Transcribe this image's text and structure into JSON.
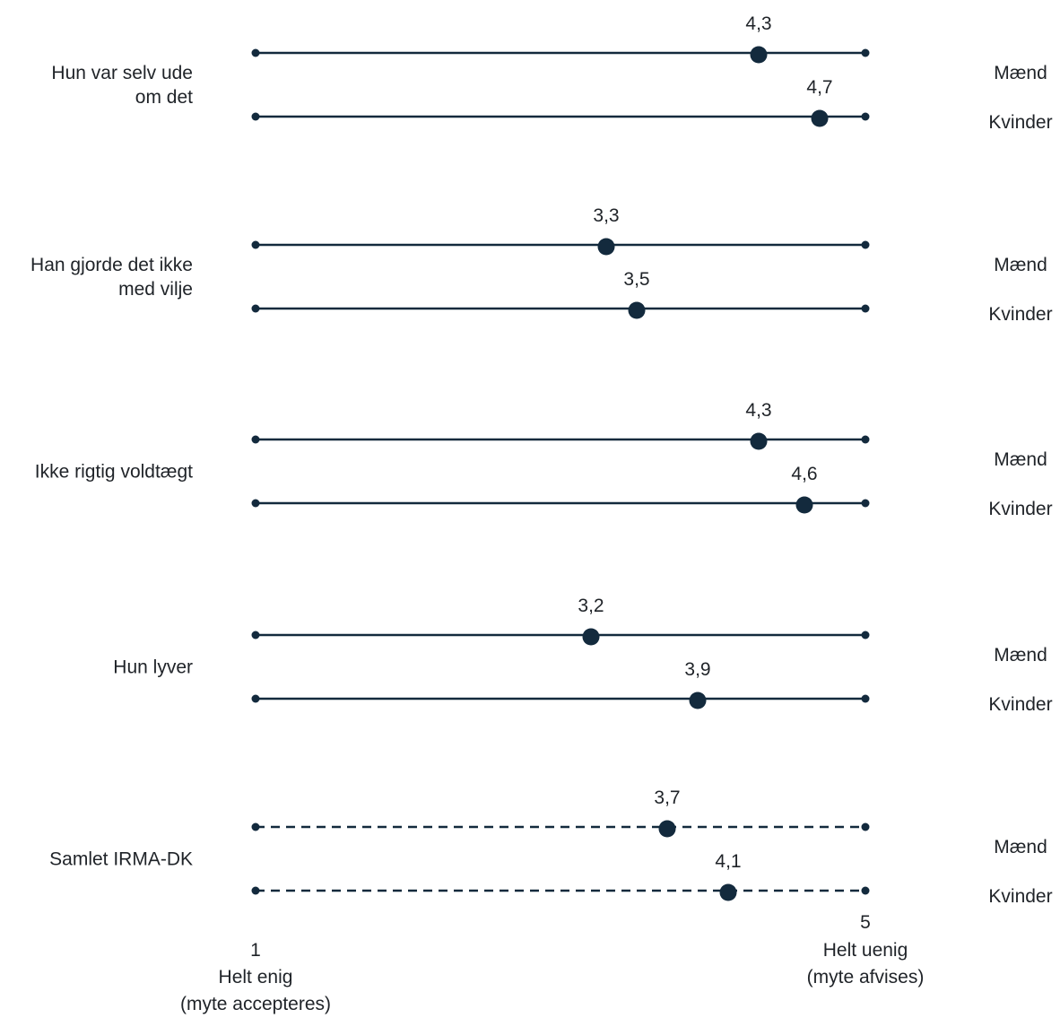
{
  "chart_data": {
    "type": "dot-scale",
    "color": "#132a3d",
    "xlim": [
      1,
      5
    ],
    "x_min_tick": "1",
    "x_min_label": [
      "Helt enig",
      "(myte accepteres)"
    ],
    "x_max_tick": "5",
    "x_max_label": [
      "Helt uenig",
      "(myte afvises)"
    ],
    "groups": [
      {
        "label": [
          "Hun var selv ude",
          "om det"
        ],
        "line_style": "solid",
        "rows": [
          {
            "series": "Mænd",
            "value": 4.3,
            "value_label": "4,3"
          },
          {
            "series": "Kvinder",
            "value": 4.7,
            "value_label": "4,7"
          }
        ]
      },
      {
        "label": [
          "Han gjorde det ikke",
          "med vilje"
        ],
        "line_style": "solid",
        "rows": [
          {
            "series": "Mænd",
            "value": 3.3,
            "value_label": "3,3"
          },
          {
            "series": "Kvinder",
            "value": 3.5,
            "value_label": "3,5"
          }
        ]
      },
      {
        "label": [
          "Ikke rigtig voldtægt"
        ],
        "line_style": "solid",
        "rows": [
          {
            "series": "Mænd",
            "value": 4.3,
            "value_label": "4,3"
          },
          {
            "series": "Kvinder",
            "value": 4.6,
            "value_label": "4,6"
          }
        ]
      },
      {
        "label": [
          "Hun lyver"
        ],
        "line_style": "solid",
        "rows": [
          {
            "series": "Mænd",
            "value": 3.2,
            "value_label": "3,2"
          },
          {
            "series": "Kvinder",
            "value": 3.9,
            "value_label": "3,9"
          }
        ]
      },
      {
        "label": [
          "Samlet IRMA-DK"
        ],
        "line_style": "dashed",
        "rows": [
          {
            "series": "Mænd",
            "value": 3.7,
            "value_label": "3,7"
          },
          {
            "series": "Kvinder",
            "value": 4.1,
            "value_label": "4,1"
          }
        ]
      }
    ]
  }
}
